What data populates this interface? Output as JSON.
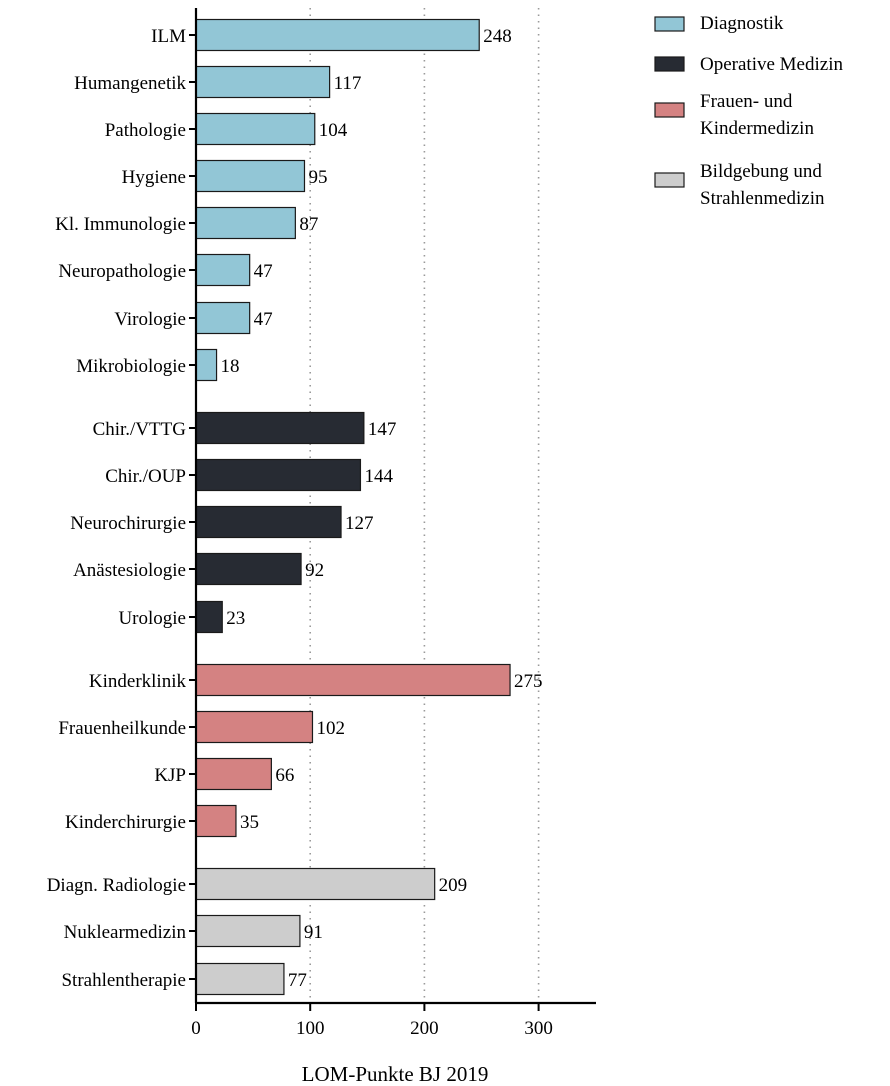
{
  "chart_data": {
    "type": "bar",
    "orientation": "horizontal",
    "xlabel": "LOM-Punkte BJ 2019",
    "xlim": [
      0,
      350
    ],
    "xticks": [
      "0",
      "100",
      "200",
      "300"
    ],
    "grid": "vertical dotted at 100, 200, 300",
    "legend_position": "top-right",
    "groups": [
      {
        "name": "Diagnostik",
        "color": "#92c6d6",
        "categories": [
          "ILM",
          "Humangenetik",
          "Pathologie",
          "Hygiene",
          "Kl. Immunologie",
          "Neuropathologie",
          "Virologie",
          "Mikrobiologie"
        ],
        "values": [
          248,
          117,
          104,
          95,
          87,
          47,
          47,
          18
        ],
        "value_labels": [
          "248",
          "117",
          "104",
          "95",
          "87",
          "47",
          "47",
          "18"
        ]
      },
      {
        "name": "Operative Medizin",
        "color": "#272b33",
        "categories": [
          "Chir./VTTG",
          "Chir./OUP",
          "Neurochirurgie",
          "Anästesiologie",
          "Urologie"
        ],
        "values": [
          147,
          144,
          127,
          92,
          23
        ],
        "value_labels": [
          "147",
          "144",
          "127",
          "92",
          "23"
        ]
      },
      {
        "name": "Frauen- und Kindermedizin",
        "legend_lines": [
          "Frauen- und",
          "Kindermedizin"
        ],
        "color": "#d48282",
        "categories": [
          "Kinderklinik",
          "Frauenheilkunde",
          "KJP",
          "Kinderchirurgie"
        ],
        "values": [
          275,
          102,
          66,
          35
        ],
        "value_labels": [
          "275",
          "102",
          "66",
          "35"
        ]
      },
      {
        "name": "Bildgebung und Strahlenmedizin",
        "legend_lines": [
          "Bildgebung und",
          "Strahlenmedizin"
        ],
        "color": "#cdcdcd",
        "categories": [
          "Diagn. Radiologie",
          "Nuklearmedizin",
          "Strahlentherapie"
        ],
        "values": [
          209,
          91,
          77
        ],
        "value_labels": [
          "209",
          "91",
          "77"
        ]
      }
    ]
  }
}
